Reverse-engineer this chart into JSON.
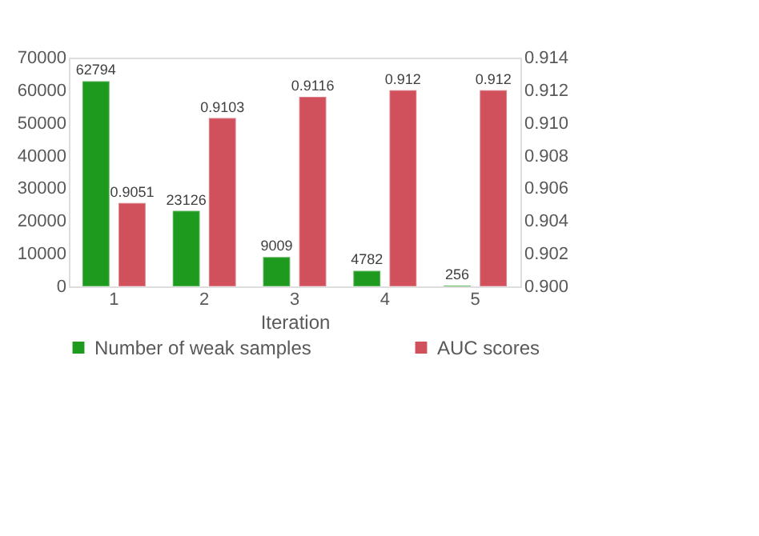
{
  "chart_data": {
    "type": "bar",
    "xlabel": "Iteration",
    "categories": [
      "1",
      "2",
      "3",
      "4",
      "5"
    ],
    "series": [
      {
        "name": "Number of weak samples",
        "color": "#1e9a1e",
        "values": [
          62794,
          23126,
          9009,
          4782,
          256
        ]
      },
      {
        "name": "AUC scores",
        "color": "#d0505c",
        "axis": "y2",
        "values": [
          0.9051,
          0.9103,
          0.9116,
          0.912,
          0.912
        ]
      }
    ],
    "ylim": [
      0,
      70000
    ],
    "yticks": [
      0,
      10000,
      20000,
      30000,
      40000,
      50000,
      60000,
      70000
    ],
    "y2lim": [
      0.9,
      0.914
    ],
    "y2ticks": [
      {
        "value": 0.9,
        "label": "0.900"
      },
      {
        "value": 0.902,
        "label": "0.902"
      },
      {
        "value": 0.904,
        "label": "0.904"
      },
      {
        "value": 0.906,
        "label": "0.906"
      },
      {
        "value": 0.908,
        "label": "0.908"
      },
      {
        "value": 0.91,
        "label": "0.910"
      },
      {
        "value": 0.912,
        "label": "0.912"
      },
      {
        "value": 0.914,
        "label": "0.914"
      }
    ],
    "data_labels": true,
    "grid": false,
    "legend": "bottom"
  }
}
